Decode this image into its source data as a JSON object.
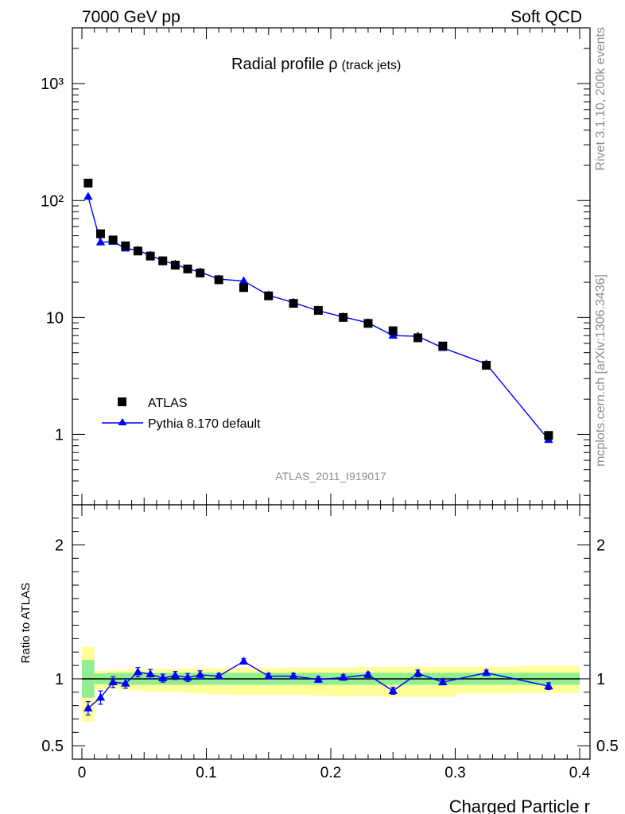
{
  "header": {
    "left": "7000 GeV pp",
    "right": "Soft QCD"
  },
  "side": {
    "top": "Rivet 3.1.10,  200k events",
    "bottom": "mcplots.cern.ch [arXiv:1306.3436]"
  },
  "chart_data": {
    "type": "scatter",
    "title": {
      "main": "Radial profile ρ",
      "sub": "(track jets)"
    },
    "analysis": "ATLAS_2011_I919017",
    "xlabel": "Charged Particle r",
    "ylabel_ratio": "Ratio to ATLAS",
    "xlim": [
      0,
      0.4
    ],
    "ylim_main": [
      0.25,
      3000
    ],
    "ylim_ratio": [
      0.4,
      2.3
    ],
    "main_scale": "log",
    "x_ticks": [
      "0",
      "0.1",
      "0.2",
      "0.3",
      "0.4"
    ],
    "y_ticks_main": [
      "1",
      "10",
      "10²",
      "10³"
    ],
    "y_ticks_ratio": [
      "0.5",
      "1",
      "2"
    ],
    "legend": {
      "position": "bottom-left",
      "entries": [
        "ATLAS",
        "Pythia 8.170 default"
      ]
    },
    "bins": [
      [
        0,
        0.01
      ],
      [
        0.01,
        0.02
      ],
      [
        0.02,
        0.03
      ],
      [
        0.03,
        0.04
      ],
      [
        0.04,
        0.05
      ],
      [
        0.05,
        0.06
      ],
      [
        0.06,
        0.07
      ],
      [
        0.07,
        0.08
      ],
      [
        0.08,
        0.09
      ],
      [
        0.09,
        0.1
      ],
      [
        0.1,
        0.12
      ],
      [
        0.12,
        0.14
      ],
      [
        0.14,
        0.16
      ],
      [
        0.16,
        0.18
      ],
      [
        0.18,
        0.2
      ],
      [
        0.2,
        0.22
      ],
      [
        0.22,
        0.24
      ],
      [
        0.24,
        0.26
      ],
      [
        0.26,
        0.28
      ],
      [
        0.28,
        0.3
      ],
      [
        0.3,
        0.35
      ],
      [
        0.35,
        0.4
      ]
    ],
    "x": [
      0.005,
      0.015,
      0.025,
      0.035,
      0.045,
      0.055,
      0.065,
      0.075,
      0.085,
      0.095,
      0.11,
      0.13,
      0.15,
      0.17,
      0.19,
      0.21,
      0.23,
      0.25,
      0.27,
      0.29,
      0.325,
      0.375
    ],
    "series": [
      {
        "name": "ATLAS",
        "values": [
          141,
          52,
          46,
          41,
          37,
          33.5,
          30.5,
          28,
          26,
          24,
          21,
          18,
          15.3,
          13.2,
          11.5,
          10,
          8.9,
          7.7,
          6.7,
          5.7,
          3.9,
          0.98
        ]
      },
      {
        "name": "Pythia 8.170 default",
        "values": [
          108,
          44,
          44.5,
          39,
          37.5,
          34,
          30.5,
          28.5,
          26,
          24.5,
          21.3,
          20.5,
          15.5,
          13.4,
          11.4,
          10.1,
          9.0,
          7.0,
          6.9,
          5.5,
          4.0,
          0.9
        ]
      }
    ],
    "ratio": [
      0.78,
      0.86,
      0.975,
      0.965,
      1.05,
      1.035,
      1.005,
      1.025,
      1.01,
      1.03,
      1.02,
      1.13,
      1.02,
      1.02,
      0.995,
      1.01,
      1.03,
      0.91,
      1.04,
      0.975,
      1.045,
      0.945
    ],
    "ratio_err": [
      0.05,
      0.05,
      0.04,
      0.035,
      0.035,
      0.035,
      0.03,
      0.03,
      0.03,
      0.03,
      0.02,
      0.02,
      0.02,
      0.02,
      0.02,
      0.02,
      0.02,
      0.025,
      0.025,
      0.02,
      0.02,
      0.025
    ],
    "band_green": [
      [
        0.86,
        1.14
      ],
      [
        0.96,
        1.04
      ],
      [
        0.955,
        1.045
      ],
      [
        0.955,
        1.045
      ],
      [
        0.955,
        1.045
      ],
      [
        0.955,
        1.045
      ],
      [
        0.955,
        1.045
      ],
      [
        0.955,
        1.045
      ],
      [
        0.955,
        1.045
      ],
      [
        0.955,
        1.045
      ],
      [
        0.955,
        1.045
      ],
      [
        0.955,
        1.045
      ],
      [
        0.955,
        1.045
      ],
      [
        0.955,
        1.045
      ],
      [
        0.955,
        1.045
      ],
      [
        0.955,
        1.045
      ],
      [
        0.955,
        1.045
      ],
      [
        0.955,
        1.045
      ],
      [
        0.955,
        1.045
      ],
      [
        0.955,
        1.045
      ],
      [
        0.955,
        1.045
      ],
      [
        0.955,
        1.045
      ]
    ],
    "band_yellow": [
      [
        0.68,
        1.24
      ],
      [
        0.92,
        1.06
      ],
      [
        0.925,
        1.065
      ],
      [
        0.915,
        1.065
      ],
      [
        0.91,
        1.07
      ],
      [
        0.905,
        1.07
      ],
      [
        0.9,
        1.075
      ],
      [
        0.9,
        1.075
      ],
      [
        0.895,
        1.075
      ],
      [
        0.89,
        1.08
      ],
      [
        0.885,
        1.08
      ],
      [
        0.88,
        1.08
      ],
      [
        0.88,
        1.08
      ],
      [
        0.88,
        1.085
      ],
      [
        0.875,
        1.085
      ],
      [
        0.87,
        1.085
      ],
      [
        0.87,
        1.09
      ],
      [
        0.865,
        1.09
      ],
      [
        0.865,
        1.09
      ],
      [
        0.865,
        1.09
      ],
      [
        0.89,
        1.09
      ],
      [
        0.895,
        1.095
      ]
    ],
    "colors": {
      "data": "#000000",
      "mc": "#0000ff",
      "band_inner": "#90ee90",
      "band_outer": "#ffff99"
    }
  }
}
